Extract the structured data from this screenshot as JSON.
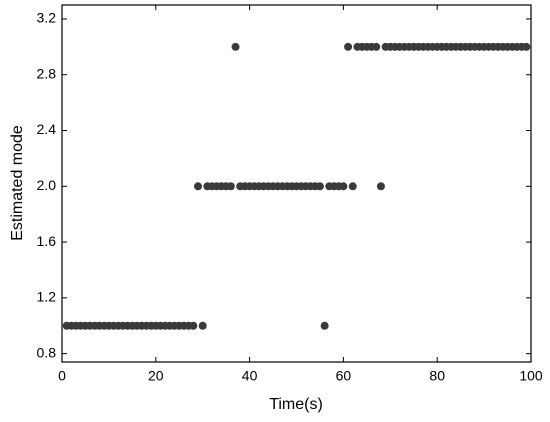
{
  "chart_data": {
    "type": "scatter",
    "xlabel": "Time(s)",
    "ylabel": "Estimated mode",
    "color": "#3a3a3a",
    "x": [
      1,
      2,
      3,
      4,
      5,
      6,
      7,
      8,
      9,
      10,
      11,
      12,
      13,
      14,
      15,
      16,
      17,
      18,
      19,
      20,
      21,
      22,
      23,
      24,
      25,
      26,
      27,
      28,
      29,
      30,
      31,
      32,
      33,
      34,
      35,
      36,
      37,
      38,
      39,
      40,
      41,
      42,
      43,
      44,
      45,
      46,
      47,
      48,
      49,
      50,
      51,
      52,
      53,
      54,
      55,
      56,
      57,
      58,
      59,
      60,
      61,
      62,
      63,
      64,
      65,
      66,
      67,
      68,
      69,
      70,
      71,
      72,
      73,
      74,
      75,
      76,
      77,
      78,
      79,
      80,
      81,
      82,
      83,
      84,
      85,
      86,
      87,
      88,
      89,
      90,
      91,
      92,
      93,
      94,
      95,
      96,
      97,
      98,
      99
    ],
    "values": [
      1,
      1,
      1,
      1,
      1,
      1,
      1,
      1,
      1,
      1,
      1,
      1,
      1,
      1,
      1,
      1,
      1,
      1,
      1,
      1,
      1,
      1,
      1,
      1,
      1,
      1,
      1,
      1,
      2,
      1,
      2,
      2,
      2,
      2,
      2,
      2,
      3,
      2,
      2,
      2,
      2,
      2,
      2,
      2,
      2,
      2,
      2,
      2,
      2,
      2,
      2,
      2,
      2,
      2,
      2,
      1,
      2,
      2,
      2,
      2,
      3,
      2,
      3,
      3,
      3,
      3,
      3,
      2,
      3,
      3,
      3,
      3,
      3,
      3,
      3,
      3,
      3,
      3,
      3,
      3,
      3,
      3,
      3,
      3,
      3,
      3,
      3,
      3,
      3,
      3,
      3,
      3,
      3,
      3,
      3,
      3,
      3,
      3,
      3
    ],
    "xlim": [
      0,
      100
    ],
    "xticks": [
      0,
      20,
      40,
      60,
      80,
      100
    ],
    "ylim": [
      0.74,
      3.3
    ],
    "yticks": [
      0.8,
      1.2,
      1.6,
      {
        "value": 2,
        "label": "2.0"
      },
      2.4,
      2.8,
      3.2
    ]
  }
}
